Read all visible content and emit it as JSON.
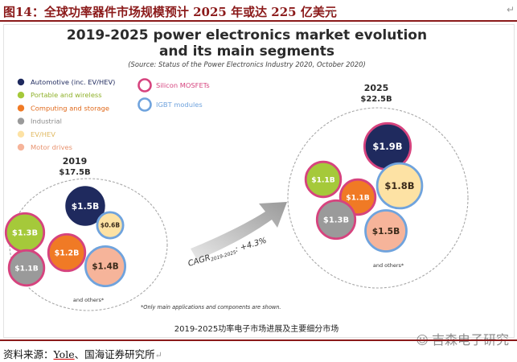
{
  "header": {
    "label": "图14：",
    "text": "全球功率器件市场规模预计 2025 年或达 225 亿美元"
  },
  "footer": {
    "source": "资料来源：",
    "org": "Yole",
    "rest": "、国海证券研究所"
  },
  "watermark": "吉森电子研究",
  "paragraph_mark": "↵",
  "chart_data": {
    "type": "bubble",
    "title_line1": "2019-2025 power electronics market evolution",
    "title_line2": "and its main segments",
    "source": "(Source: Status of the Power Electronics Industry 2020, October 2020)",
    "legend": {
      "segments": [
        {
          "key": "auto",
          "label": "Automotive (inc. EV/HEV)",
          "color": "#1f2a5e",
          "text_color": "#1f2a5e"
        },
        {
          "key": "portable",
          "label": "Portable and wireless",
          "color": "#a5c93a",
          "text_color": "#8fb12a"
        },
        {
          "key": "computing",
          "label": "Computing and storage",
          "color": "#f07a25",
          "text_color": "#e0691b"
        },
        {
          "key": "industrial",
          "label": "Industrial",
          "color": "#9a9a9a",
          "text_color": "#8a8a8a"
        },
        {
          "key": "evhev",
          "label": "EV/HEV",
          "color": "#fde2a4",
          "text_color": "#e0b860"
        },
        {
          "key": "motor",
          "label": "Motor drives",
          "color": "#f6b49a",
          "text_color": "#e8926e"
        }
      ],
      "components": [
        {
          "key": "mosfet",
          "label": "Silicon MOSFETs",
          "color": "#d6437e"
        },
        {
          "key": "igbt",
          "label": "IGBT modules",
          "color": "#6fa3dd"
        }
      ]
    },
    "years": [
      {
        "year": "2019",
        "total": "$17.5B",
        "total_value": 17.5,
        "bubbles": [
          {
            "label": "$1.5B",
            "value": 1.5,
            "segment": "auto",
            "component": null
          },
          {
            "label": "$1.3B",
            "value": 1.3,
            "segment": "portable",
            "component": "mosfet"
          },
          {
            "label": "$0.6B",
            "value": 0.6,
            "segment": "evhev",
            "component": "igbt"
          },
          {
            "label": "$1.2B",
            "value": 1.2,
            "segment": "computing",
            "component": "mosfet"
          },
          {
            "label": "$1.1B",
            "value": 1.1,
            "segment": "industrial",
            "component": "mosfet"
          },
          {
            "label": "$1.4B",
            "value": 1.4,
            "segment": "motor",
            "component": "igbt"
          }
        ],
        "others_label": "and others*"
      },
      {
        "year": "2025",
        "total": "$22.5B",
        "total_value": 22.5,
        "bubbles": [
          {
            "label": "$1.9B",
            "value": 1.9,
            "segment": "auto",
            "component": "mosfet"
          },
          {
            "label": "$1.1B",
            "value": 1.1,
            "segment": "portable",
            "component": "mosfet"
          },
          {
            "label": "$1.8B",
            "value": 1.8,
            "segment": "evhev",
            "component": "igbt"
          },
          {
            "label": "$1.1B",
            "value": 1.1,
            "segment": "computing",
            "component": "mosfet"
          },
          {
            "label": "$1.3B",
            "value": 1.3,
            "segment": "industrial",
            "component": "mosfet"
          },
          {
            "label": "$1.5B",
            "value": 1.5,
            "segment": "motor",
            "component": "igbt"
          }
        ],
        "others_label": "and others*"
      }
    ],
    "cagr": {
      "label": "CAGR",
      "subscript": "2019-2025",
      "value": ": +4.3%"
    },
    "footnote": "*Only main applications and components are shown.",
    "caption": "2019-2025功率电子市场进展及主要细分市场"
  }
}
